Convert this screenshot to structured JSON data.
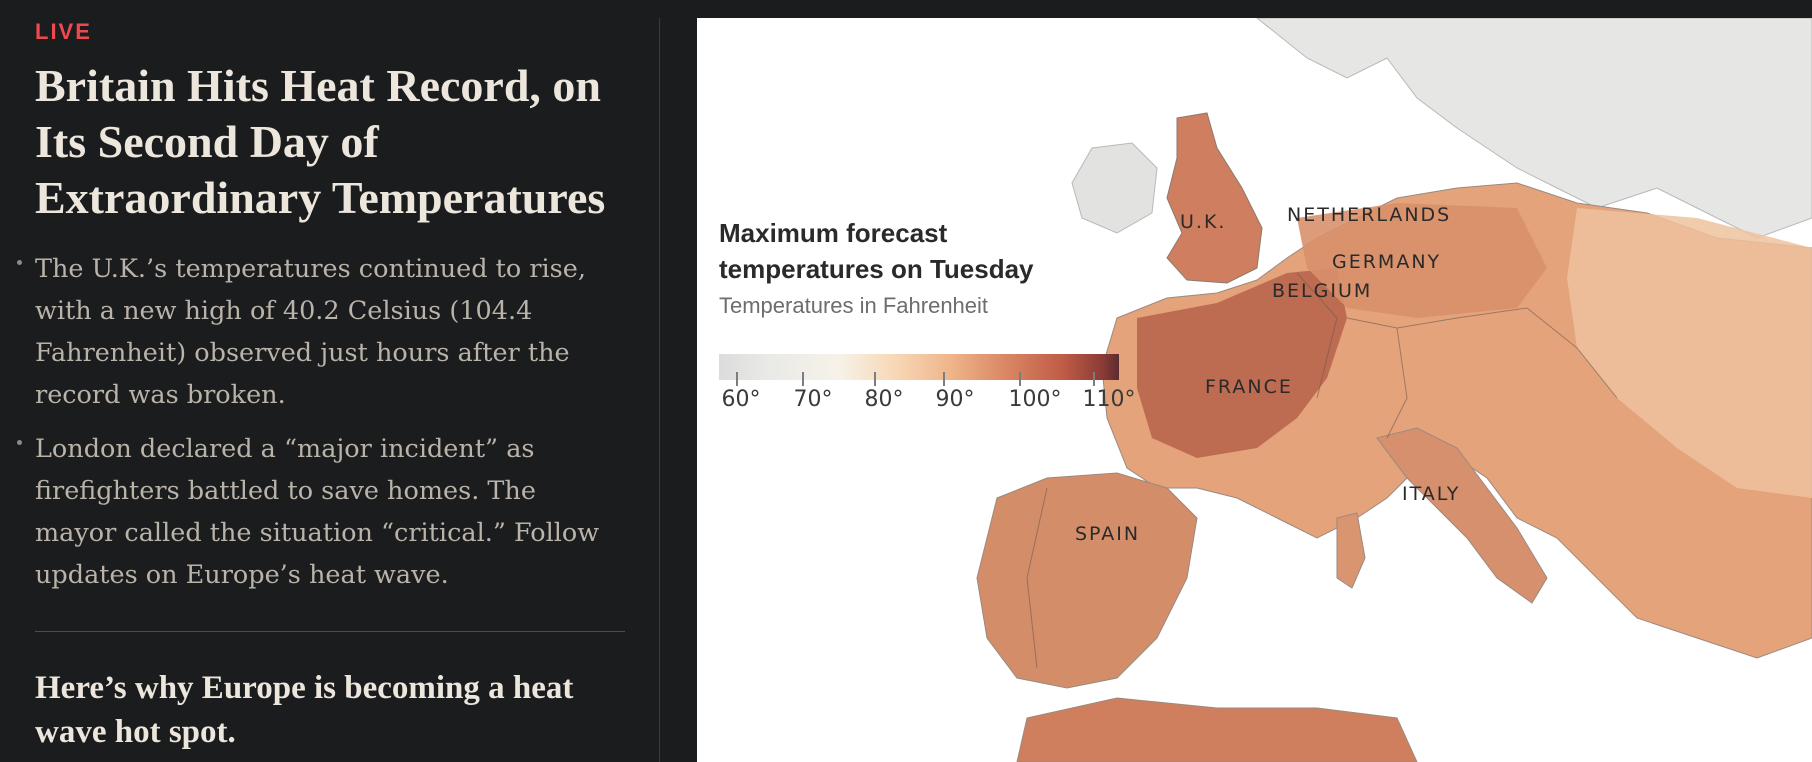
{
  "article": {
    "live_label": "LIVE",
    "headline": "Britain Hits Heat Record, on Its Second Day of Extraordinary Temperatures",
    "bullets": [
      "The U.K.’s temperatures continued to rise, with a new high of 40.2 Celsius (104.4 Fahrenheit) observed just hours after the record was broken.",
      "London declared a “major incident” as firefighters battled to save homes. The mayor called the situation “critical.” Follow updates on Europe’s heat wave."
    ],
    "subhead": "Here’s why Europe is becoming a heat wave hot spot."
  },
  "map": {
    "legend": {
      "title": "Maximum forecast temperatures on Tuesday",
      "subtitle": "Temperatures in Fahrenheit",
      "ticks": [
        "60°",
        "70°",
        "80°",
        "90°",
        "100°",
        "110°"
      ],
      "scale_colors": [
        "#dcdcdc",
        "#f6f2e8",
        "#efb48a",
        "#d98663",
        "#bf5c46",
        "#5a2c2e"
      ]
    },
    "labels": {
      "uk": "U.K.",
      "netherlands": "NETHERLANDS",
      "germany": "GERMANY",
      "belgium": "BELGIUM",
      "france": "FRANCE",
      "spain": "SPAIN",
      "italy": "ITALY"
    }
  },
  "colors": {
    "background": "#1b1c1e",
    "live": "#f0484f",
    "headline": "#ece6dc",
    "body_text": "#b9b3a9"
  }
}
